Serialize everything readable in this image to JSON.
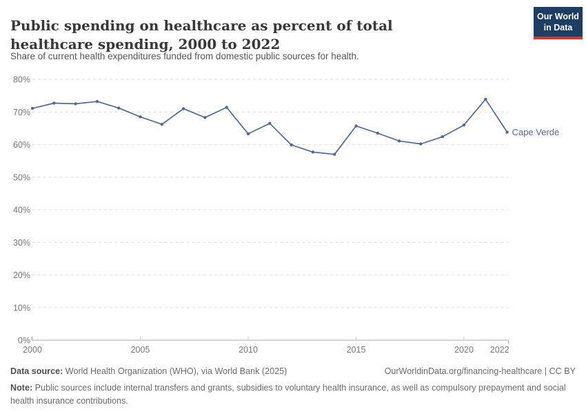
{
  "header": {
    "title": "Public spending on healthcare as percent of total healthcare spending, 2000 to 2022",
    "subtitle": "Share of current health expenditures funded from domestic public sources for health.",
    "logo": {
      "line1": "Our World",
      "line2": "in Data"
    }
  },
  "chart_data": {
    "type": "line",
    "title": "Public spending on healthcare as percent of total healthcare spending, 2000 to 2022",
    "x": [
      2000,
      2001,
      2002,
      2003,
      2004,
      2005,
      2006,
      2007,
      2008,
      2009,
      2010,
      2011,
      2012,
      2013,
      2014,
      2015,
      2016,
      2017,
      2018,
      2019,
      2020,
      2021,
      2022
    ],
    "series": [
      {
        "name": "Cape Verde",
        "color": "#4c6a9f",
        "values": [
          71.1,
          72.7,
          72.5,
          73.2,
          71.2,
          68.5,
          66.2,
          71.0,
          68.3,
          71.4,
          63.3,
          66.5,
          59.9,
          57.7,
          57.0,
          65.7,
          63.5,
          61.1,
          60.2,
          62.4,
          66.0,
          73.9,
          63.8
        ]
      }
    ],
    "ylim": [
      0,
      80
    ],
    "ytick_interval": 10,
    "ytick_suffix": "%",
    "xticks": [
      2000,
      2005,
      2010,
      2015,
      2020,
      2022
    ],
    "xlabel": "",
    "ylabel": "",
    "grid": "horizontal-dashed",
    "legend_position": "end-of-line-label",
    "end_label": "Cape Verde"
  },
  "footer": {
    "datasource_label": "Data source:",
    "datasource_text": " World Health Organization (WHO), via World Bank (2025)",
    "rights": "OurWorldinData.org/financing-healthcare | CC BY",
    "note_label": "Note:",
    "note_text": " Public sources include internal transfers and grants, subsidies to voluntary health insurance, as well as compulsory prepayment and social health insurance contributions."
  },
  "colors": {
    "line": "#4c6a9f",
    "grid": "#dcdcdc",
    "axis": "#a8a8a8",
    "tick": "#c9c9c9",
    "logo_bg": "#1d3d63",
    "logo_stripe": "#dc3328"
  }
}
